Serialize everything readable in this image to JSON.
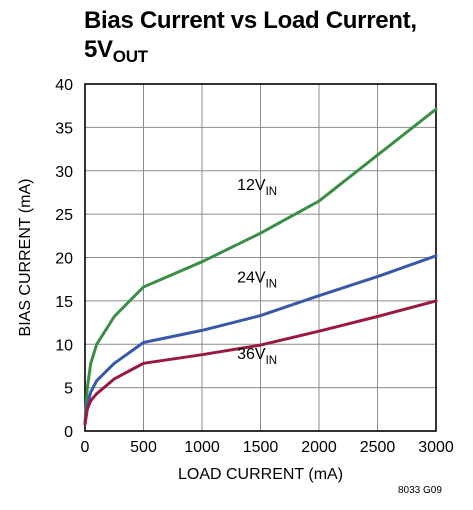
{
  "title": {
    "main": "Bias Current vs Load Current,",
    "line2": "5V",
    "line2_sub": "OUT"
  },
  "figure_code": "8033 G09",
  "chart_data": {
    "type": "line",
    "xlabel": "LOAD CURRENT (mA)",
    "ylabel": "BIAS CURRENT (mA)",
    "xlim": [
      0,
      3000
    ],
    "ylim": [
      0,
      40
    ],
    "xticks": [
      0,
      500,
      1000,
      1500,
      2000,
      2500,
      3000
    ],
    "yticks": [
      0,
      5,
      10,
      15,
      20,
      25,
      30,
      35,
      40
    ],
    "grid": true,
    "series": [
      {
        "label": "12V",
        "label_sub": "IN",
        "color": "#3a8f44",
        "x": [
          0,
          20,
          50,
          100,
          250,
          500,
          1000,
          1500,
          2000,
          2500,
          3000
        ],
        "y": [
          0.8,
          5,
          7.8,
          10,
          13.2,
          16.6,
          19.5,
          22.8,
          26.5,
          31.8,
          37.1
        ]
      },
      {
        "label": "24V",
        "label_sub": "IN",
        "color": "#3a58a8",
        "x": [
          0,
          20,
          50,
          100,
          250,
          500,
          1000,
          1500,
          2000,
          2500,
          3000
        ],
        "y": [
          0.8,
          3,
          4.5,
          5.8,
          7.8,
          10.2,
          11.6,
          13.3,
          15.6,
          17.8,
          20.2
        ]
      },
      {
        "label": "36V",
        "label_sub": "IN",
        "color": "#9a1a3e",
        "x": [
          0,
          20,
          50,
          100,
          250,
          500,
          1000,
          1500,
          2000,
          2500,
          3000
        ],
        "y": [
          0.8,
          2.5,
          3.5,
          4.3,
          6,
          7.8,
          8.8,
          9.9,
          11.5,
          13.2,
          15
        ]
      }
    ],
    "annotations": [
      {
        "text": "12V",
        "sub": "IN",
        "x": 1300,
        "y": 27.8
      },
      {
        "text": "24V",
        "sub": "IN",
        "x": 1300,
        "y": 17.1
      },
      {
        "text": "36V",
        "sub": "IN",
        "x": 1300,
        "y": 8.3
      }
    ]
  }
}
